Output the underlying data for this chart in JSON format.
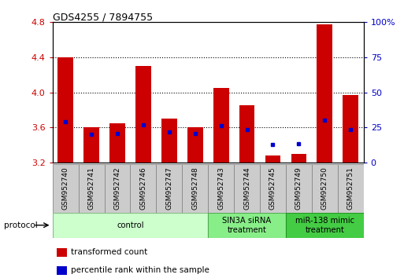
{
  "title": "GDS4255 / 7894755",
  "samples": [
    "GSM952740",
    "GSM952741",
    "GSM952742",
    "GSM952746",
    "GSM952747",
    "GSM952748",
    "GSM952743",
    "GSM952744",
    "GSM952745",
    "GSM952749",
    "GSM952750",
    "GSM952751"
  ],
  "red_top": [
    4.4,
    3.6,
    3.65,
    4.3,
    3.7,
    3.6,
    4.05,
    3.85,
    3.28,
    3.3,
    4.78,
    3.97
  ],
  "blue_y": [
    3.67,
    3.52,
    3.53,
    3.63,
    3.55,
    3.53,
    3.62,
    3.58,
    3.41,
    3.42,
    3.68,
    3.58
  ],
  "bar_base": 3.2,
  "ylim_left": [
    3.2,
    4.8
  ],
  "ylim_right": [
    0,
    100
  ],
  "yticks_left": [
    3.2,
    3.6,
    4.0,
    4.4,
    4.8
  ],
  "yticks_right": [
    0,
    25,
    50,
    75,
    100
  ],
  "ytick_labels_right": [
    "0",
    "25",
    "50",
    "75",
    "100%"
  ],
  "red_color": "#cc0000",
  "blue_color": "#0000cc",
  "bar_width": 0.6,
  "groups": [
    {
      "label": "control",
      "start": 0,
      "end": 6,
      "color": "#ccffcc",
      "edge_color": "#88bb88"
    },
    {
      "label": "SIN3A siRNA\ntreatment",
      "start": 6,
      "end": 9,
      "color": "#88ee88",
      "edge_color": "#55aa55"
    },
    {
      "label": "miR-138 mimic\ntreatment",
      "start": 9,
      "end": 12,
      "color": "#44cc44",
      "edge_color": "#229922"
    }
  ],
  "protocol_label": "protocol",
  "legend_items": [
    {
      "color": "#cc0000",
      "label": "transformed count"
    },
    {
      "color": "#0000cc",
      "label": "percentile rank within the sample"
    }
  ],
  "right_label_color": "#0000cc",
  "left_label_color": "#cc0000",
  "label_box_color": "#cccccc",
  "label_box_edge": "#888888"
}
